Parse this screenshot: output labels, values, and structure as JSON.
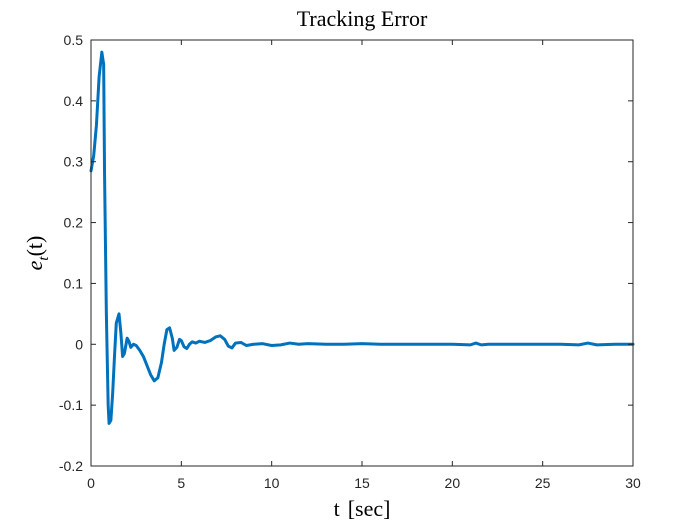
{
  "chart_data": {
    "type": "line",
    "title": "Tracking Error",
    "xlabel_main": "t",
    "xlabel_unit": "[sec]",
    "ylabel_base": "e",
    "ylabel_sub": "t",
    "ylabel_arg": "(t)",
    "xlim": [
      0,
      30
    ],
    "ylim": [
      -0.2,
      0.5
    ],
    "x_ticks": [
      0,
      5,
      10,
      15,
      20,
      25,
      30
    ],
    "y_ticks": [
      -0.2,
      -0.1,
      0,
      0.1,
      0.2,
      0.3,
      0.4,
      0.5
    ],
    "x_tick_labels": [
      "0",
      "5",
      "10",
      "15",
      "20",
      "25",
      "30"
    ],
    "y_tick_labels": [
      "-0.2",
      "-0.1",
      "0",
      "0.1",
      "0.2",
      "0.3",
      "0.4",
      "0.5"
    ],
    "grid": false,
    "series": [
      {
        "color": "#0072BD",
        "x": [
          0,
          0.15,
          0.3,
          0.45,
          0.6,
          0.7,
          0.75,
          0.85,
          0.95,
          1.0,
          1.1,
          1.2,
          1.3,
          1.4,
          1.55,
          1.65,
          1.75,
          1.85,
          2.0,
          2.1,
          2.2,
          2.35,
          2.5,
          2.7,
          2.9,
          3.1,
          3.3,
          3.5,
          3.7,
          3.9,
          4.05,
          4.2,
          4.35,
          4.5,
          4.6,
          4.75,
          4.9,
          5.0,
          5.15,
          5.3,
          5.45,
          5.6,
          5.8,
          6.0,
          6.3,
          6.6,
          6.9,
          7.15,
          7.4,
          7.6,
          7.8,
          8.0,
          8.3,
          8.6,
          9.0,
          9.5,
          10.0,
          10.5,
          11.0,
          11.5,
          12.0,
          13.0,
          14.0,
          15.0,
          16.0,
          17.0,
          18.0,
          19.0,
          20.0,
          21.0,
          21.3,
          21.6,
          22.0,
          23.0,
          24.0,
          25.0,
          26.0,
          27.0,
          27.5,
          28.0,
          29.0,
          30.0
        ],
        "y": [
          0.285,
          0.31,
          0.36,
          0.44,
          0.48,
          0.46,
          0.28,
          0.05,
          -0.1,
          -0.13,
          -0.125,
          -0.08,
          -0.02,
          0.035,
          0.05,
          0.02,
          -0.02,
          -0.015,
          0.01,
          0.005,
          -0.005,
          0.0,
          -0.002,
          -0.01,
          -0.02,
          -0.035,
          -0.05,
          -0.06,
          -0.055,
          -0.03,
          0.0,
          0.024,
          0.027,
          0.01,
          -0.01,
          -0.005,
          0.008,
          0.006,
          -0.004,
          -0.007,
          0.0,
          0.004,
          0.002,
          0.005,
          0.003,
          0.006,
          0.012,
          0.014,
          0.008,
          -0.003,
          -0.006,
          0.002,
          0.003,
          -0.002,
          0.0,
          0.001,
          -0.002,
          -0.001,
          0.002,
          0.0,
          0.001,
          0.0,
          0.0,
          0.001,
          0.0,
          0.0,
          0.0,
          0.0,
          0.0,
          -0.001,
          0.002,
          -0.001,
          0.0,
          0.0,
          0.0,
          0.0,
          0.0,
          -0.001,
          0.002,
          -0.001,
          0.0,
          0.0
        ]
      }
    ]
  }
}
